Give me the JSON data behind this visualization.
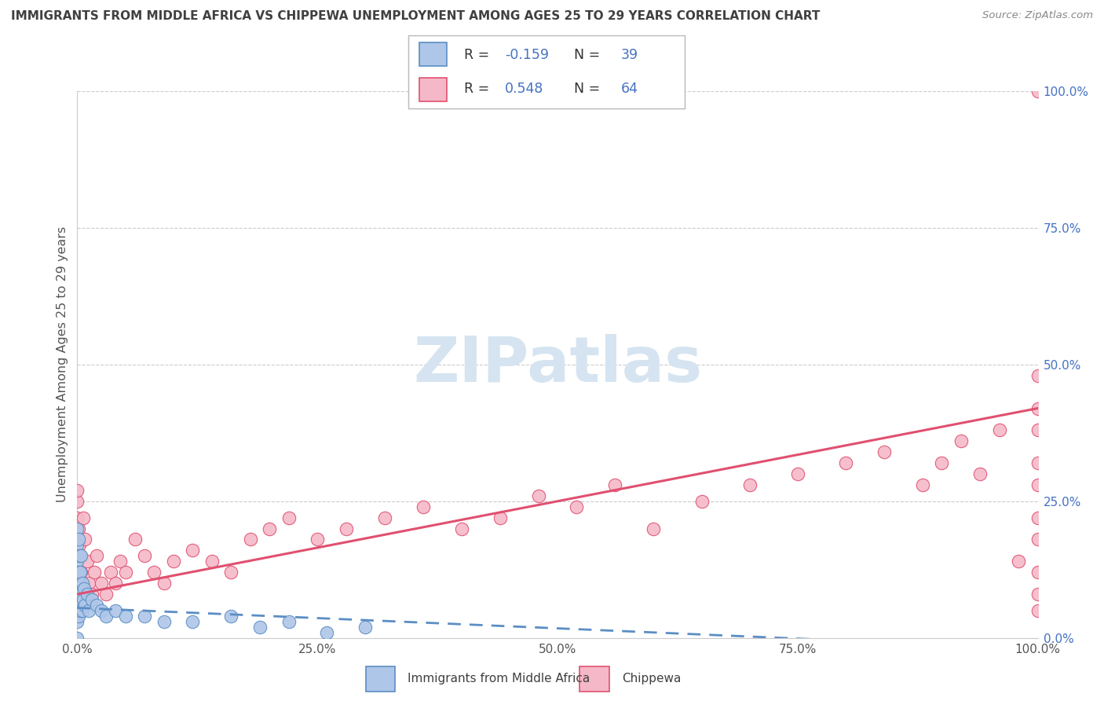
{
  "title": "IMMIGRANTS FROM MIDDLE AFRICA VS CHIPPEWA UNEMPLOYMENT AMONG AGES 25 TO 29 YEARS CORRELATION CHART",
  "source": "Source: ZipAtlas.com",
  "ylabel": "Unemployment Among Ages 25 to 29 years",
  "legend_labels": [
    "Immigrants from Middle Africa",
    "Chippewa"
  ],
  "legend_R": [
    -0.159,
    0.548
  ],
  "legend_N": [
    39,
    64
  ],
  "x_tick_labels": [
    "0.0%",
    "25.0%",
    "50.0%",
    "75.0%",
    "100.0%"
  ],
  "x_ticks": [
    0.0,
    0.25,
    0.5,
    0.75,
    1.0
  ],
  "y_tick_labels_right": [
    "0.0%",
    "25.0%",
    "50.0%",
    "75.0%",
    "100.0%"
  ],
  "y_ticks": [
    0.0,
    0.25,
    0.5,
    0.75,
    1.0
  ],
  "color_blue": "#aec6e8",
  "color_pink": "#f5b8c8",
  "edge_blue": "#5b8ec4",
  "edge_pink": "#e05070",
  "background_color": "#ffffff",
  "grid_color": "#cccccc",
  "title_color": "#404040",
  "label_color": "#555555",
  "right_axis_color": "#4472c4",
  "watermark_color": "#d5e4f0",
  "blue_trend_x": [
    0.0,
    1.0
  ],
  "blue_trend_y": [
    0.055,
    -0.02
  ],
  "pink_trend_x": [
    0.0,
    1.0
  ],
  "pink_trend_y": [
    0.08,
    0.42
  ],
  "blue_x": [
    0.0,
    0.0,
    0.0,
    0.0,
    0.0,
    0.0,
    0.0,
    0.0,
    0.001,
    0.001,
    0.001,
    0.002,
    0.002,
    0.002,
    0.003,
    0.003,
    0.004,
    0.004,
    0.005,
    0.005,
    0.006,
    0.007,
    0.008,
    0.01,
    0.012,
    0.015,
    0.02,
    0.025,
    0.03,
    0.04,
    0.05,
    0.07,
    0.09,
    0.12,
    0.16,
    0.19,
    0.22,
    0.26,
    0.3
  ],
  "blue_y": [
    0.0,
    0.03,
    0.06,
    0.1,
    0.14,
    0.17,
    0.2,
    0.08,
    0.04,
    0.12,
    0.18,
    0.06,
    0.1,
    0.15,
    0.05,
    0.12,
    0.08,
    0.15,
    0.05,
    0.1,
    0.07,
    0.09,
    0.06,
    0.08,
    0.05,
    0.07,
    0.06,
    0.05,
    0.04,
    0.05,
    0.04,
    0.04,
    0.03,
    0.03,
    0.04,
    0.02,
    0.03,
    0.01,
    0.02
  ],
  "pink_x": [
    0.0,
    0.0,
    0.0,
    0.001,
    0.002,
    0.003,
    0.004,
    0.005,
    0.006,
    0.008,
    0.01,
    0.012,
    0.015,
    0.018,
    0.02,
    0.025,
    0.03,
    0.035,
    0.04,
    0.045,
    0.05,
    0.06,
    0.07,
    0.08,
    0.09,
    0.1,
    0.12,
    0.14,
    0.16,
    0.18,
    0.2,
    0.22,
    0.25,
    0.28,
    0.32,
    0.36,
    0.4,
    0.44,
    0.48,
    0.52,
    0.56,
    0.6,
    0.65,
    0.7,
    0.75,
    0.8,
    0.84,
    0.88,
    0.9,
    0.92,
    0.94,
    0.96,
    0.98,
    1.0,
    1.0,
    1.0,
    1.0,
    1.0,
    1.0,
    1.0,
    1.0,
    1.0,
    1.0,
    1.0
  ],
  "pink_y": [
    0.22,
    0.25,
    0.27,
    0.2,
    0.17,
    0.15,
    0.12,
    0.1,
    0.22,
    0.18,
    0.14,
    0.1,
    0.08,
    0.12,
    0.15,
    0.1,
    0.08,
    0.12,
    0.1,
    0.14,
    0.12,
    0.18,
    0.15,
    0.12,
    0.1,
    0.14,
    0.16,
    0.14,
    0.12,
    0.18,
    0.2,
    0.22,
    0.18,
    0.2,
    0.22,
    0.24,
    0.2,
    0.22,
    0.26,
    0.24,
    0.28,
    0.2,
    0.25,
    0.28,
    0.3,
    0.32,
    0.34,
    0.28,
    0.32,
    0.36,
    0.3,
    0.38,
    0.14,
    0.05,
    0.08,
    0.12,
    0.18,
    0.22,
    0.28,
    0.32,
    0.38,
    0.42,
    0.48,
    1.0
  ]
}
